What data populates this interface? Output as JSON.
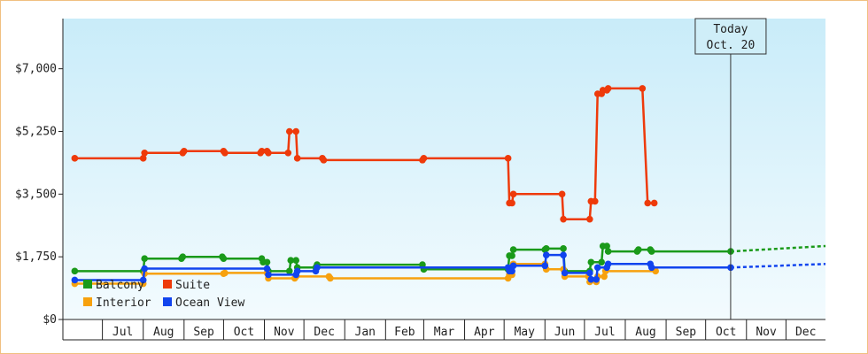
{
  "chart_data": {
    "type": "line",
    "title": "",
    "xlabel": "",
    "ylabel": "",
    "ylim": [
      0,
      8400
    ],
    "y_ticks": [
      {
        "value": 0,
        "label": "$0"
      },
      {
        "value": 1750,
        "label": "$1,750"
      },
      {
        "value": 3500,
        "label": "$3,500"
      },
      {
        "value": 5250,
        "label": "$5,250"
      },
      {
        "value": 7000,
        "label": "$7,000"
      }
    ],
    "x_domain": [
      "2015-06-01",
      "2016-12-31"
    ],
    "month_ticks": [
      {
        "label": "Jul",
        "date": "2015-07-01"
      },
      {
        "label": "Aug",
        "date": "2015-08-01"
      },
      {
        "label": "Sep",
        "date": "2015-09-01"
      },
      {
        "label": "Oct",
        "date": "2015-10-01"
      },
      {
        "label": "Nov",
        "date": "2015-11-01"
      },
      {
        "label": "Dec",
        "date": "2015-12-01"
      },
      {
        "label": "Jan",
        "date": "2016-01-01"
      },
      {
        "label": "Feb",
        "date": "2016-02-01"
      },
      {
        "label": "Mar",
        "date": "2016-03-01"
      },
      {
        "label": "Apr",
        "date": "2016-04-01"
      },
      {
        "label": "May",
        "date": "2016-05-01"
      },
      {
        "label": "Jun",
        "date": "2016-06-01"
      },
      {
        "label": "Jul",
        "date": "2016-07-01"
      },
      {
        "label": "Aug",
        "date": "2016-08-01"
      },
      {
        "label": "Sep",
        "date": "2016-09-01"
      },
      {
        "label": "Oct",
        "date": "2016-10-01"
      },
      {
        "label": "Nov",
        "date": "2016-11-01"
      },
      {
        "label": "Dec",
        "date": "2016-12-01"
      }
    ],
    "today": {
      "label_line1": "Today",
      "label_line2": "Oct. 20",
      "date": "2016-10-20"
    },
    "legend": {
      "placement": "bottom-left"
    },
    "grid": false,
    "background": {
      "top": "#c9ecf9",
      "bottom": "#f3fbfe"
    },
    "series": [
      {
        "name": "Balcony",
        "color": "#1a9a1a",
        "points": [
          [
            "2015-06-10",
            1350
          ],
          [
            "2015-08-01",
            1350
          ],
          [
            "2015-08-02",
            1700
          ],
          [
            "2015-08-30",
            1700
          ],
          [
            "2015-08-31",
            1750
          ],
          [
            "2015-09-30",
            1750
          ],
          [
            "2015-10-01",
            1700
          ],
          [
            "2015-10-30",
            1700
          ],
          [
            "2015-10-31",
            1600
          ],
          [
            "2015-11-03",
            1600
          ],
          [
            "2015-11-04",
            1350
          ],
          [
            "2015-11-20",
            1350
          ],
          [
            "2015-11-21",
            1650
          ],
          [
            "2015-11-25",
            1650
          ],
          [
            "2015-11-26",
            1450
          ],
          [
            "2015-12-10",
            1450
          ],
          [
            "2015-12-11",
            1530
          ],
          [
            "2016-02-29",
            1530
          ],
          [
            "2016-03-01",
            1400
          ],
          [
            "2016-05-04",
            1400
          ],
          [
            "2016-05-05",
            1780
          ],
          [
            "2016-05-07",
            1780
          ],
          [
            "2016-05-08",
            1950
          ],
          [
            "2016-06-01",
            1950
          ],
          [
            "2016-06-02",
            1980
          ],
          [
            "2016-06-15",
            1980
          ],
          [
            "2016-06-16",
            1350
          ],
          [
            "2016-07-05",
            1350
          ],
          [
            "2016-07-06",
            1600
          ],
          [
            "2016-07-14",
            1600
          ],
          [
            "2016-07-15",
            2050
          ],
          [
            "2016-07-18",
            2050
          ],
          [
            "2016-07-19",
            1900
          ],
          [
            "2016-08-10",
            1900
          ],
          [
            "2016-08-11",
            1950
          ],
          [
            "2016-08-20",
            1950
          ],
          [
            "2016-08-21",
            1900
          ],
          [
            "2016-10-20",
            1900
          ]
        ],
        "forecast": [
          [
            "2016-10-20",
            1900
          ],
          [
            "2016-12-31",
            2050
          ]
        ]
      },
      {
        "name": "Suite",
        "color": "#ee3a0a",
        "points": [
          [
            "2015-06-10",
            4500
          ],
          [
            "2015-08-01",
            4500
          ],
          [
            "2015-08-02",
            4650
          ],
          [
            "2015-08-31",
            4650
          ],
          [
            "2015-09-01",
            4700
          ],
          [
            "2015-10-01",
            4700
          ],
          [
            "2015-10-02",
            4650
          ],
          [
            "2015-10-29",
            4650
          ],
          [
            "2015-10-30",
            4700
          ],
          [
            "2015-11-03",
            4700
          ],
          [
            "2015-11-04",
            4650
          ],
          [
            "2015-11-19",
            4650
          ],
          [
            "2015-11-20",
            5250
          ],
          [
            "2015-11-25",
            5250
          ],
          [
            "2015-11-26",
            4500
          ],
          [
            "2015-12-15",
            4500
          ],
          [
            "2015-12-16",
            4450
          ],
          [
            "2016-02-29",
            4450
          ],
          [
            "2016-03-01",
            4500
          ],
          [
            "2016-05-04",
            4500
          ],
          [
            "2016-05-05",
            3250
          ],
          [
            "2016-05-07",
            3250
          ],
          [
            "2016-05-08",
            3500
          ],
          [
            "2016-06-14",
            3500
          ],
          [
            "2016-06-15",
            2800
          ],
          [
            "2016-07-05",
            2800
          ],
          [
            "2016-07-06",
            3300
          ],
          [
            "2016-07-09",
            3300
          ],
          [
            "2016-07-11",
            6300
          ],
          [
            "2016-07-14",
            6300
          ],
          [
            "2016-07-15",
            6400
          ],
          [
            "2016-07-18",
            6400
          ],
          [
            "2016-07-19",
            6450
          ],
          [
            "2016-08-14",
            6450
          ],
          [
            "2016-08-18",
            3250
          ],
          [
            "2016-08-23",
            3250
          ]
        ]
      },
      {
        "name": "Interior",
        "color": "#f7a10e",
        "points": [
          [
            "2015-06-10",
            1000
          ],
          [
            "2015-08-01",
            1000
          ],
          [
            "2015-08-02",
            1280
          ],
          [
            "2015-10-01",
            1280
          ],
          [
            "2015-10-02",
            1300
          ],
          [
            "2015-11-03",
            1300
          ],
          [
            "2015-11-04",
            1150
          ],
          [
            "2015-11-24",
            1150
          ],
          [
            "2015-11-25",
            1200
          ],
          [
            "2015-12-20",
            1200
          ],
          [
            "2015-12-21",
            1150
          ],
          [
            "2016-05-04",
            1150
          ],
          [
            "2016-05-05",
            1250
          ],
          [
            "2016-05-07",
            1250
          ],
          [
            "2016-05-08",
            1550
          ],
          [
            "2016-06-01",
            1550
          ],
          [
            "2016-06-02",
            1400
          ],
          [
            "2016-06-15",
            1400
          ],
          [
            "2016-06-16",
            1200
          ],
          [
            "2016-07-04",
            1200
          ],
          [
            "2016-07-05",
            1050
          ],
          [
            "2016-07-10",
            1050
          ],
          [
            "2016-07-11",
            1200
          ],
          [
            "2016-07-16",
            1200
          ],
          [
            "2016-07-17",
            1350
          ],
          [
            "2016-08-24",
            1350
          ]
        ]
      },
      {
        "name": "Ocean View",
        "color": "#1144ee",
        "points": [
          [
            "2015-06-10",
            1100
          ],
          [
            "2015-08-01",
            1100
          ],
          [
            "2015-08-02",
            1420
          ],
          [
            "2015-11-03",
            1420
          ],
          [
            "2015-11-04",
            1250
          ],
          [
            "2015-11-25",
            1250
          ],
          [
            "2015-11-26",
            1350
          ],
          [
            "2015-12-10",
            1350
          ],
          [
            "2015-12-11",
            1450
          ],
          [
            "2016-05-04",
            1450
          ],
          [
            "2016-05-05",
            1350
          ],
          [
            "2016-05-07",
            1350
          ],
          [
            "2016-05-08",
            1500
          ],
          [
            "2016-06-01",
            1500
          ],
          [
            "2016-06-02",
            1800
          ],
          [
            "2016-06-15",
            1800
          ],
          [
            "2016-06-16",
            1300
          ],
          [
            "2016-07-05",
            1300
          ],
          [
            "2016-07-06",
            1120
          ],
          [
            "2016-07-10",
            1120
          ],
          [
            "2016-07-11",
            1450
          ],
          [
            "2016-07-18",
            1450
          ],
          [
            "2016-07-19",
            1550
          ],
          [
            "2016-08-20",
            1550
          ],
          [
            "2016-08-21",
            1450
          ],
          [
            "2016-10-20",
            1450
          ]
        ],
        "forecast": [
          [
            "2016-10-20",
            1450
          ],
          [
            "2016-12-31",
            1550
          ]
        ]
      }
    ]
  }
}
